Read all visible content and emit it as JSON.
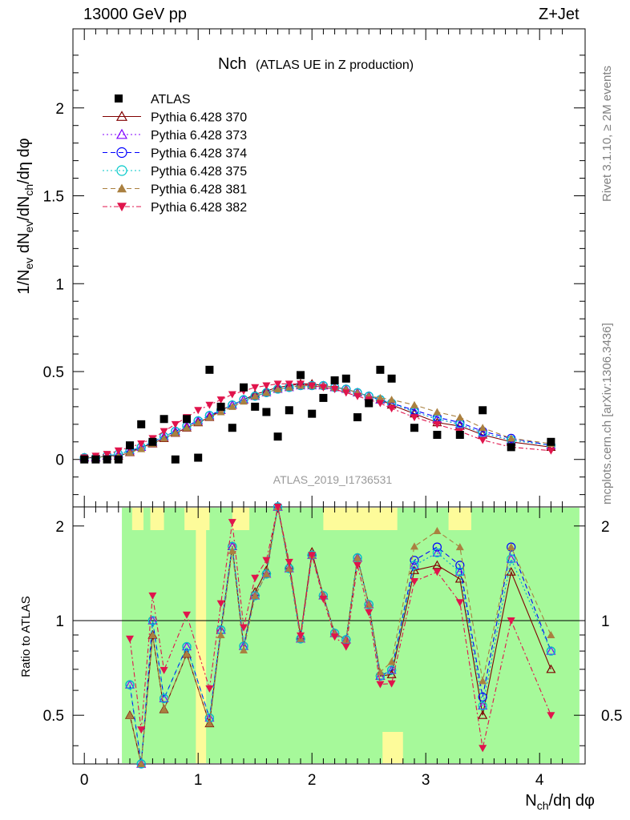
{
  "header": {
    "energy": "13000 GeV pp",
    "process": "Z+Jet"
  },
  "side": {
    "rivet": "Rivet 3.1.10, ≥ 2M events",
    "site": "mcplots.cern.ch [arXiv:1306.3436]"
  },
  "chart_data": {
    "type": "scatter",
    "title_main": "Nch",
    "title_sub": "(ATLAS UE in Z production)",
    "ylabel_top": "1/N_ev dN_ev/dN_ch/dη dφ",
    "ylabel_bottom": "Ratio to ATLAS",
    "xlabel": "N_ch/dη dφ",
    "analysis_tag": "ATLAS_2019_I1736531",
    "xlim": [
      -0.1,
      4.4
    ],
    "ylim_top": [
      -0.27,
      2.45
    ],
    "ylim_bottom": [
      0.35,
      2.3
    ],
    "ratio_log_scale": true,
    "x_ticks": [
      "0",
      "1",
      "2",
      "3",
      "4"
    ],
    "y_ticks_top": [
      "0",
      "0.5",
      "1",
      "1.5",
      "2"
    ],
    "y_ticks_bottom": [
      "0.5",
      "1",
      "2"
    ],
    "legend_position": "top-left",
    "x": [
      0.0,
      0.1,
      0.2,
      0.3,
      0.4,
      0.5,
      0.6,
      0.7,
      0.8,
      0.9,
      1.0,
      1.1,
      1.2,
      1.3,
      1.4,
      1.5,
      1.6,
      1.7,
      1.8,
      1.9,
      2.0,
      2.1,
      2.2,
      2.3,
      2.4,
      2.5,
      2.6,
      2.7,
      2.9,
      3.1,
      3.3,
      3.5,
      3.75,
      4.1
    ],
    "data": {
      "name": "ATLAS",
      "values": [
        0.0,
        0.0,
        0.0,
        0.0,
        0.08,
        0.2,
        0.1,
        0.23,
        0.0,
        0.23,
        0.01,
        0.51,
        0.3,
        0.18,
        0.41,
        0.3,
        0.27,
        0.13,
        0.28,
        0.48,
        0.26,
        0.35,
        0.45,
        0.46,
        0.24,
        0.32,
        0.51,
        0.46,
        0.18,
        0.14,
        0.14,
        0.28,
        0.07,
        0.1
      ]
    },
    "series": [
      {
        "name": "Pythia 6.428 370",
        "color": "#800000",
        "marker": "triangle-open",
        "dash": "solid",
        "values": [
          0.01,
          0.01,
          0.02,
          0.02,
          0.04,
          0.07,
          0.09,
          0.12,
          0.15,
          0.18,
          0.21,
          0.24,
          0.28,
          0.31,
          0.34,
          0.37,
          0.39,
          0.41,
          0.42,
          0.43,
          0.43,
          0.42,
          0.41,
          0.4,
          0.38,
          0.36,
          0.34,
          0.31,
          0.26,
          0.21,
          0.19,
          0.14,
          0.1,
          0.07
        ]
      },
      {
        "name": "Pythia 6.428 373",
        "color": "#8000ff",
        "marker": "triangle-open",
        "dash": "dotted",
        "values": [
          0.01,
          0.01,
          0.02,
          0.03,
          0.05,
          0.07,
          0.1,
          0.13,
          0.16,
          0.19,
          0.22,
          0.25,
          0.28,
          0.31,
          0.34,
          0.36,
          0.38,
          0.4,
          0.41,
          0.42,
          0.42,
          0.42,
          0.41,
          0.4,
          0.38,
          0.36,
          0.34,
          0.32,
          0.27,
          0.23,
          0.2,
          0.15,
          0.11,
          0.08
        ]
      },
      {
        "name": "Pythia 6.428 374",
        "color": "#0000ff",
        "marker": "circle-open",
        "dash": "dashed",
        "values": [
          0.01,
          0.01,
          0.02,
          0.03,
          0.05,
          0.07,
          0.1,
          0.13,
          0.16,
          0.19,
          0.22,
          0.25,
          0.28,
          0.31,
          0.34,
          0.36,
          0.38,
          0.4,
          0.41,
          0.42,
          0.42,
          0.42,
          0.41,
          0.4,
          0.38,
          0.36,
          0.34,
          0.32,
          0.28,
          0.24,
          0.21,
          0.16,
          0.12,
          0.08
        ]
      },
      {
        "name": "Pythia 6.428 375",
        "color": "#00c8c8",
        "marker": "circle-open",
        "dash": "dotted",
        "values": [
          0.01,
          0.01,
          0.02,
          0.03,
          0.05,
          0.07,
          0.1,
          0.13,
          0.16,
          0.19,
          0.22,
          0.25,
          0.28,
          0.31,
          0.34,
          0.36,
          0.38,
          0.4,
          0.41,
          0.42,
          0.42,
          0.42,
          0.41,
          0.4,
          0.38,
          0.36,
          0.34,
          0.32,
          0.27,
          0.23,
          0.2,
          0.15,
          0.11,
          0.08
        ]
      },
      {
        "name": "Pythia 6.428 381",
        "color": "#aa8040",
        "marker": "triangle-filled",
        "dash": "dashed",
        "values": [
          0.01,
          0.01,
          0.02,
          0.02,
          0.04,
          0.06,
          0.09,
          0.12,
          0.15,
          0.18,
          0.21,
          0.24,
          0.27,
          0.3,
          0.33,
          0.36,
          0.38,
          0.4,
          0.41,
          0.42,
          0.42,
          0.42,
          0.41,
          0.4,
          0.38,
          0.36,
          0.35,
          0.34,
          0.31,
          0.27,
          0.24,
          0.18,
          0.12,
          0.09
        ]
      },
      {
        "name": "Pythia 6.428 382",
        "color": "#e0144c",
        "marker": "triangle-down-filled",
        "dash": "dashdot",
        "values": [
          0.01,
          0.02,
          0.03,
          0.05,
          0.07,
          0.09,
          0.12,
          0.16,
          0.2,
          0.24,
          0.28,
          0.31,
          0.34,
          0.37,
          0.39,
          0.41,
          0.42,
          0.43,
          0.43,
          0.43,
          0.42,
          0.41,
          0.4,
          0.38,
          0.36,
          0.34,
          0.32,
          0.29,
          0.24,
          0.2,
          0.16,
          0.11,
          0.07,
          0.05
        ]
      }
    ]
  }
}
